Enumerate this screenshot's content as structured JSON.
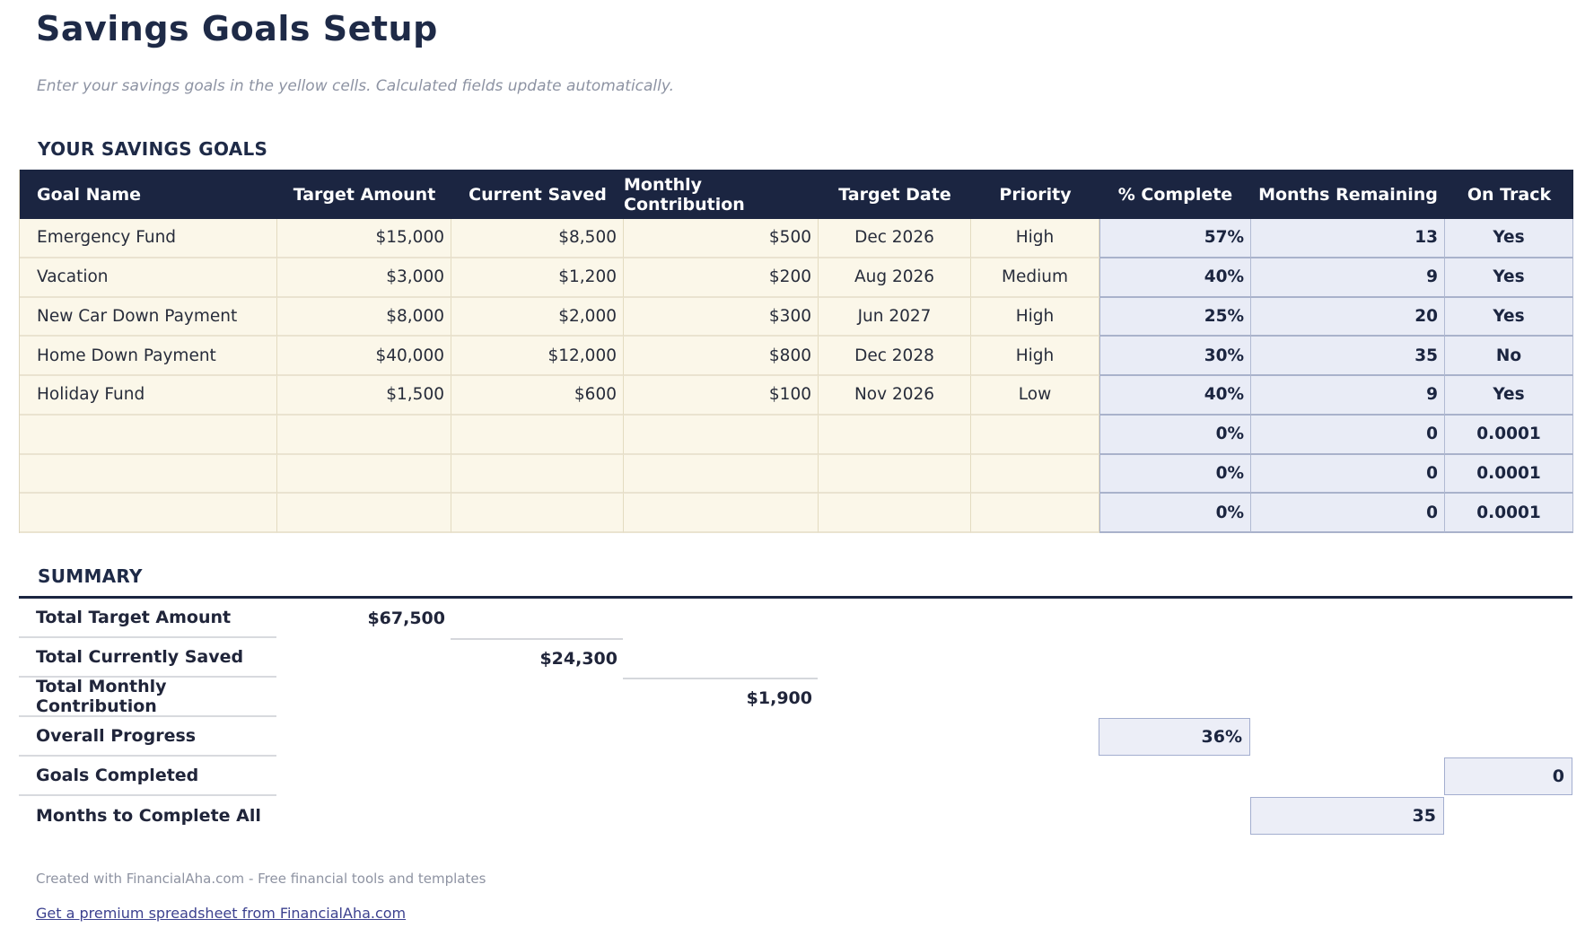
{
  "page": {
    "title": "Savings Goals Setup",
    "subtitle": "Enter your savings goals in the yellow cells. Calculated fields update automatically."
  },
  "goals_section": {
    "heading": "YOUR SAVINGS GOALS",
    "columns": [
      "Goal Name",
      "Target Amount",
      "Current Saved",
      "Monthly Contribution",
      "Target Date",
      "Priority",
      "% Complete",
      "Months Remaining",
      "On Track"
    ],
    "rows": [
      [
        "Emergency Fund",
        "$15,000",
        "$8,500",
        "$500",
        "Dec 2026",
        "High",
        "57%",
        "13",
        "Yes"
      ],
      [
        "Vacation",
        "$3,000",
        "$1,200",
        "$200",
        "Aug 2026",
        "Medium",
        "40%",
        "9",
        "Yes"
      ],
      [
        "New Car Down Payment",
        "$8,000",
        "$2,000",
        "$300",
        "Jun 2027",
        "High",
        "25%",
        "20",
        "Yes"
      ],
      [
        "Home Down Payment",
        "$40,000",
        "$12,000",
        "$800",
        "Dec 2028",
        "High",
        "30%",
        "35",
        "No"
      ],
      [
        "Holiday Fund",
        "$1,500",
        "$600",
        "$100",
        "Nov 2026",
        "Low",
        "40%",
        "9",
        "Yes"
      ],
      [
        "",
        "",
        "",
        "",
        "",
        "",
        "0%",
        "0",
        "0.0001"
      ],
      [
        "",
        "",
        "",
        "",
        "",
        "",
        "0%",
        "0",
        "0.0001"
      ],
      [
        "",
        "",
        "",
        "",
        "",
        "",
        "0%",
        "0",
        "0.0001"
      ]
    ]
  },
  "summary_section": {
    "heading": "SUMMARY",
    "rows": [
      {
        "label": "Total Target Amount",
        "value": "$67,500",
        "col": 1,
        "box": false,
        "topline": false
      },
      {
        "label": "Total Currently Saved",
        "value": "$24,300",
        "col": 2,
        "box": false,
        "topline": true
      },
      {
        "label": "Total Monthly Contribution",
        "value": "$1,900",
        "col": 3,
        "box": false,
        "topline": true
      },
      {
        "label": "Overall Progress",
        "value": "36%",
        "col": 6,
        "box": true,
        "topline": false
      },
      {
        "label": "Goals Completed",
        "value": "0",
        "col": 8,
        "box": true,
        "topline": false
      },
      {
        "label": "Months to Complete All",
        "value": "35",
        "col": 7,
        "box": true,
        "topline": false
      }
    ]
  },
  "footer": {
    "credit": "Created with FinancialAha.com - Free financial tools and templates",
    "link": "Get a premium spreadsheet from FinancialAha.com"
  },
  "colors": {
    "header_navy": "#1b2541",
    "input_cell_yellow": "#fbf7e9",
    "calc_cell_lavender": "#e9ecf6",
    "calc_border": "#a9b2cb",
    "yellow_border": "#e3dbc1",
    "heading_navy": "#1e2a47",
    "link_indigo": "#3c418f",
    "muted_gray": "#8e93a2"
  }
}
